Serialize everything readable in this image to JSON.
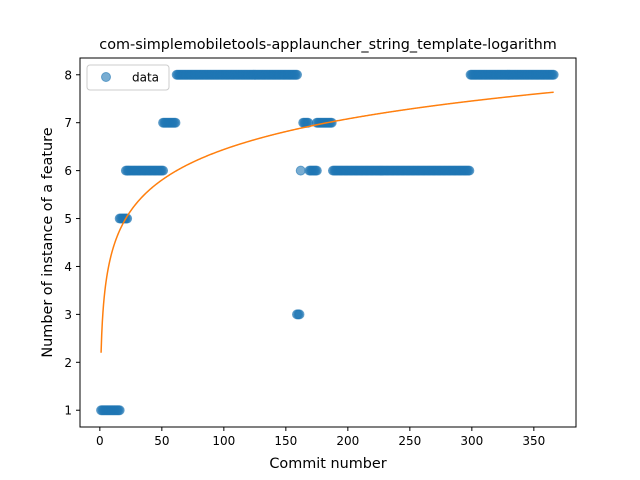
{
  "chart_data": {
    "type": "scatter",
    "title": "com-simplemobiletools-applauncher_string_template-logarithm",
    "xlabel": "Commit number",
    "ylabel": "Number of instance of a feature",
    "xlim": [
      -16,
      384
    ],
    "ylim": [
      0.65,
      8.35
    ],
    "xticks": [
      0,
      50,
      100,
      150,
      200,
      250,
      300,
      350
    ],
    "yticks": [
      1,
      2,
      3,
      4,
      5,
      6,
      7,
      8
    ],
    "grid": false,
    "legend": {
      "placement": "top-left",
      "entries": [
        "data"
      ]
    },
    "colors": {
      "points": "#1f77b4",
      "fit": "#ff7f0e"
    },
    "segments": [
      {
        "x_start": 1,
        "x_end": 16,
        "y": 1
      },
      {
        "x_start": 16,
        "x_end": 22,
        "y": 5
      },
      {
        "x_start": 21,
        "x_end": 51,
        "y": 6
      },
      {
        "x_start": 51,
        "x_end": 61,
        "y": 7
      },
      {
        "x_start": 62,
        "x_end": 159,
        "y": 8
      },
      {
        "x_start": 159,
        "x_end": 161,
        "y": 3
      },
      {
        "x_start": 162,
        "x_end": 162,
        "y": 6
      },
      {
        "x_start": 164,
        "x_end": 168,
        "y": 7
      },
      {
        "x_start": 169,
        "x_end": 175,
        "y": 6
      },
      {
        "x_start": 175,
        "x_end": 187,
        "y": 7
      },
      {
        "x_start": 188,
        "x_end": 298,
        "y": 6
      },
      {
        "x_start": 299,
        "x_end": 366,
        "y": 8
      }
    ],
    "fit": {
      "model": "a + b*ln(x)",
      "a": 2.2,
      "b": 0.921,
      "x_start": 1,
      "x_end": 366
    }
  }
}
